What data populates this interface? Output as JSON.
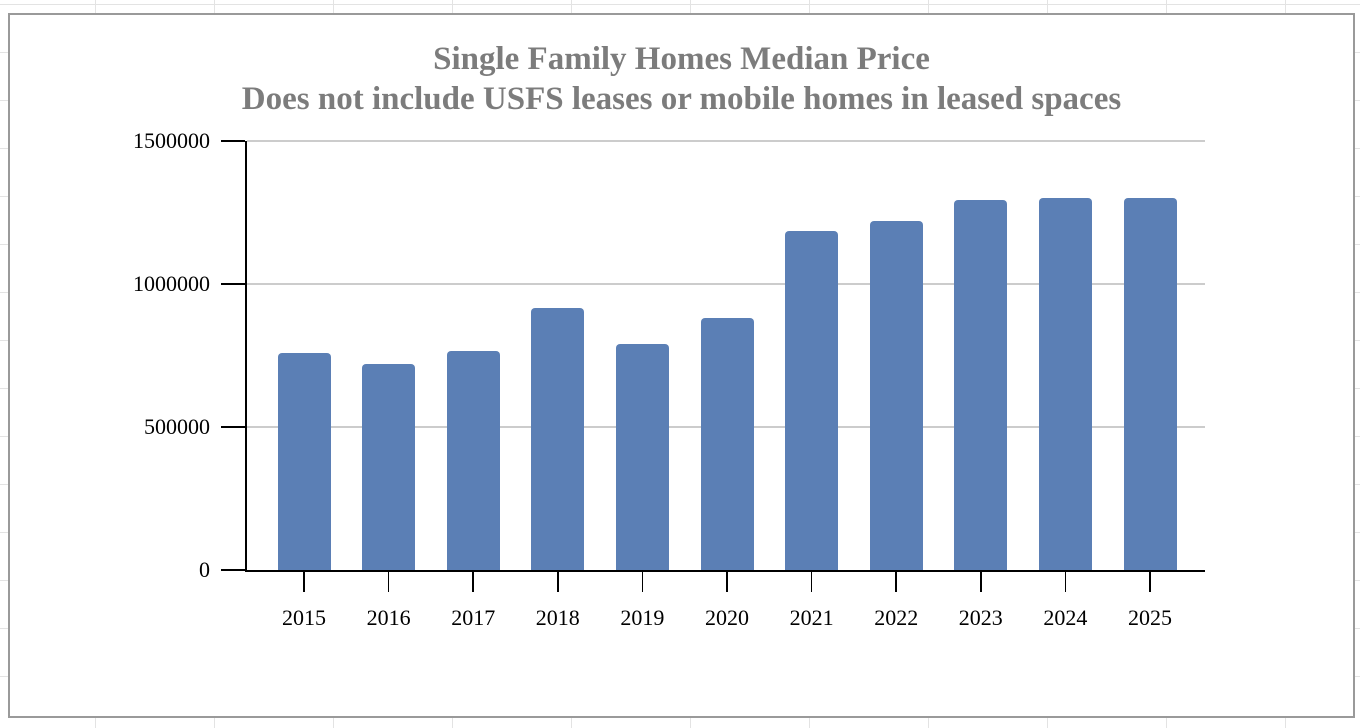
{
  "window": {
    "background": "spreadsheet-cells"
  },
  "chart_data": {
    "type": "bar",
    "title": "Single Family Homes Median Price",
    "subtitle": "Does not include USFS leases or mobile homes in leased spaces",
    "categories": [
      "2015",
      "2016",
      "2017",
      "2018",
      "2019",
      "2020",
      "2021",
      "2022",
      "2023",
      "2024",
      "2025"
    ],
    "values": [
      760000,
      720000,
      765000,
      915000,
      790000,
      880000,
      1185000,
      1220000,
      1295000,
      1300000,
      1300000
    ],
    "xlabel": "",
    "ylabel": "",
    "ylim": [
      0,
      1500000
    ],
    "yticks": [
      0,
      500000,
      1000000,
      1500000
    ],
    "ytick_labels": [
      "0",
      "500000",
      "1000000",
      "1500000"
    ],
    "grid": "horizontal-major",
    "legend": "none",
    "colors": {
      "bar": "#5b7fb5",
      "title_text": "#7c7c7c",
      "axis": "#000000",
      "plot_gridline": "#cccccc",
      "sheet_gridline": "#e3e3e3",
      "chart_border": "#9a9a9a",
      "chart_background": "#ffffff"
    }
  }
}
